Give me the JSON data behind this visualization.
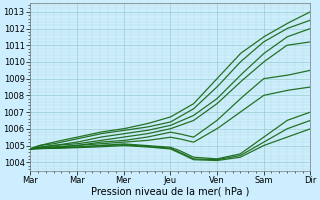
{
  "xlabel": "Pression niveau de la mer( hPa )",
  "ylim": [
    1003.5,
    1013.5
  ],
  "yticks": [
    1004,
    1005,
    1006,
    1007,
    1008,
    1009,
    1010,
    1011,
    1012,
    1013
  ],
  "bg_color": "#cceeff",
  "grid_major_color": "#99cccc",
  "grid_minor_color": "#bbdddd",
  "line_color": "#1a6b1a",
  "figsize": [
    3.2,
    2.0
  ],
  "dpi": 100,
  "lines": [
    {
      "x": [
        0,
        0.2,
        0.5,
        1.0,
        1.5,
        2.0,
        2.5,
        3.0,
        3.5,
        4.0,
        4.5,
        5.0,
        5.5,
        6.0
      ],
      "y": [
        1004.8,
        1005.0,
        1005.2,
        1005.5,
        1005.8,
        1006.0,
        1006.3,
        1006.7,
        1007.5,
        1009.0,
        1010.5,
        1011.5,
        1012.3,
        1013.0
      ]
    },
    {
      "x": [
        0,
        0.2,
        0.5,
        1.0,
        1.5,
        2.0,
        2.5,
        3.0,
        3.5,
        4.0,
        4.5,
        5.0,
        5.5,
        6.0
      ],
      "y": [
        1004.8,
        1005.0,
        1005.1,
        1005.4,
        1005.7,
        1005.9,
        1006.1,
        1006.4,
        1007.2,
        1008.5,
        1010.0,
        1011.2,
        1012.0,
        1012.5
      ]
    },
    {
      "x": [
        0,
        0.2,
        0.5,
        1.0,
        1.5,
        2.0,
        2.5,
        3.0,
        3.5,
        4.0,
        4.5,
        5.0,
        5.5,
        6.0
      ],
      "y": [
        1004.8,
        1004.9,
        1005.0,
        1005.2,
        1005.5,
        1005.7,
        1005.9,
        1006.2,
        1006.8,
        1007.8,
        1009.2,
        1010.5,
        1011.5,
        1012.0
      ]
    },
    {
      "x": [
        0,
        0.2,
        0.5,
        1.0,
        1.5,
        2.0,
        2.5,
        3.0,
        3.5,
        4.0,
        4.5,
        5.0,
        5.5,
        6.0
      ],
      "y": [
        1004.8,
        1004.9,
        1005.0,
        1005.1,
        1005.3,
        1005.5,
        1005.7,
        1006.0,
        1006.5,
        1007.5,
        1008.8,
        1010.0,
        1011.0,
        1011.2
      ]
    },
    {
      "x": [
        0,
        0.2,
        0.5,
        1.0,
        1.5,
        2.0,
        2.5,
        3.0,
        3.2,
        3.5,
        4.0,
        4.5,
        5.0,
        5.5,
        6.0
      ],
      "y": [
        1004.8,
        1004.85,
        1004.9,
        1005.0,
        1005.2,
        1005.3,
        1005.5,
        1005.8,
        1005.7,
        1005.5,
        1006.5,
        1007.8,
        1009.0,
        1009.2,
        1009.5
      ]
    },
    {
      "x": [
        0,
        0.2,
        0.5,
        1.0,
        1.5,
        2.0,
        2.5,
        3.0,
        3.2,
        3.5,
        4.0,
        4.5,
        5.0,
        5.5,
        6.0
      ],
      "y": [
        1004.8,
        1004.85,
        1004.9,
        1005.0,
        1005.1,
        1005.2,
        1005.3,
        1005.5,
        1005.4,
        1005.2,
        1006.0,
        1007.0,
        1008.0,
        1008.3,
        1008.5
      ]
    },
    {
      "x": [
        0,
        0.2,
        0.5,
        1.0,
        1.5,
        2.0,
        2.5,
        3.0,
        3.2,
        3.5,
        4.0,
        4.5,
        5.0,
        5.5,
        6.0
      ],
      "y": [
        1004.8,
        1004.82,
        1004.85,
        1004.9,
        1005.0,
        1005.1,
        1005.0,
        1004.9,
        1004.7,
        1004.3,
        1004.2,
        1004.5,
        1005.5,
        1006.5,
        1007.0
      ]
    },
    {
      "x": [
        0,
        0.2,
        0.5,
        1.0,
        1.5,
        2.0,
        2.5,
        3.0,
        3.2,
        3.5,
        4.0,
        4.5,
        5.0,
        5.5,
        6.0
      ],
      "y": [
        1004.8,
        1004.82,
        1004.85,
        1004.9,
        1005.0,
        1005.05,
        1004.95,
        1004.85,
        1004.6,
        1004.2,
        1004.15,
        1004.4,
        1005.2,
        1006.0,
        1006.5
      ]
    },
    {
      "x": [
        0,
        0.2,
        0.5,
        1.0,
        1.5,
        2.0,
        2.5,
        3.0,
        3.2,
        3.5,
        4.0,
        4.5,
        5.0,
        5.5,
        6.0
      ],
      "y": [
        1004.8,
        1004.81,
        1004.83,
        1004.87,
        1004.92,
        1005.0,
        1004.92,
        1004.8,
        1004.55,
        1004.15,
        1004.1,
        1004.3,
        1005.0,
        1005.5,
        1006.0
      ]
    }
  ],
  "xtick_positions": [
    0,
    1,
    2,
    3,
    4,
    5,
    6
  ],
  "xtick_labels": [
    "Mar",
    "Mar",
    "Mer",
    "Jeu",
    "Ven",
    "Sam",
    "Dir"
  ]
}
